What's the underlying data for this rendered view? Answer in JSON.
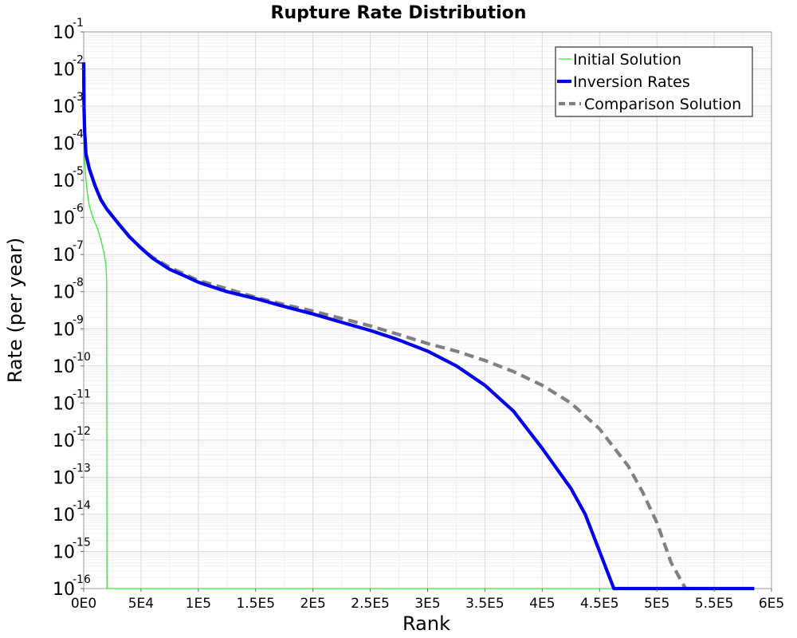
{
  "chart_data": {
    "type": "line",
    "title": "Rupture Rate Distribution",
    "xlabel": "Rank",
    "ylabel": "Rate (per year)",
    "x_scale": "linear",
    "y_scale": "log",
    "xlim": [
      0,
      600000
    ],
    "ylim": [
      1e-16,
      0.1
    ],
    "grid": true,
    "legend_position": "top-right",
    "x_ticks": [
      {
        "value": 0,
        "label": "0E0"
      },
      {
        "value": 50000,
        "label": "5E4"
      },
      {
        "value": 100000,
        "label": "1E5"
      },
      {
        "value": 150000,
        "label": "1.5E5"
      },
      {
        "value": 200000,
        "label": "2E5"
      },
      {
        "value": 250000,
        "label": "2.5E5"
      },
      {
        "value": 300000,
        "label": "3E5"
      },
      {
        "value": 350000,
        "label": "3.5E5"
      },
      {
        "value": 400000,
        "label": "4E5"
      },
      {
        "value": 450000,
        "label": "4.5E5"
      },
      {
        "value": 500000,
        "label": "5E5"
      },
      {
        "value": 550000,
        "label": "5.5E5"
      },
      {
        "value": 600000,
        "label": "6E5"
      }
    ],
    "y_ticks": [
      {
        "value": 0.1,
        "base": "10",
        "exp": "-1"
      },
      {
        "value": 0.01,
        "base": "10",
        "exp": "-2"
      },
      {
        "value": 0.001,
        "base": "10",
        "exp": "-3"
      },
      {
        "value": 0.0001,
        "base": "10",
        "exp": "-4"
      },
      {
        "value": 1e-05,
        "base": "10",
        "exp": "-5"
      },
      {
        "value": 1e-06,
        "base": "10",
        "exp": "-6"
      },
      {
        "value": 1e-07,
        "base": "10",
        "exp": "-7"
      },
      {
        "value": 1e-08,
        "base": "10",
        "exp": "-8"
      },
      {
        "value": 1e-09,
        "base": "10",
        "exp": "-9"
      },
      {
        "value": 1e-10,
        "base": "10",
        "exp": "-10"
      },
      {
        "value": 1e-11,
        "base": "10",
        "exp": "-11"
      },
      {
        "value": 1e-12,
        "base": "10",
        "exp": "-12"
      },
      {
        "value": 1e-13,
        "base": "10",
        "exp": "-13"
      },
      {
        "value": 1e-14,
        "base": "10",
        "exp": "-14"
      },
      {
        "value": 1e-15,
        "base": "10",
        "exp": "-15"
      },
      {
        "value": 1e-16,
        "base": "10",
        "exp": "-16"
      }
    ],
    "series": [
      {
        "name": "Initial Solution",
        "color": "#33ee33",
        "style": "solid-thin",
        "points": [
          [
            0,
            0.01
          ],
          [
            300,
            0.0001
          ],
          [
            1000,
            3e-05
          ],
          [
            2000,
            1e-05
          ],
          [
            3000,
            5e-06
          ],
          [
            5000,
            2e-06
          ],
          [
            8000,
            1e-06
          ],
          [
            12000,
            5e-07
          ],
          [
            15000,
            2.5e-07
          ],
          [
            18000,
            1e-07
          ],
          [
            19500,
            5e-08
          ],
          [
            20000,
            2e-08
          ],
          [
            20300,
            1e-16
          ],
          [
            40000,
            1e-16
          ],
          [
            100000,
            1e-16
          ],
          [
            200000,
            1e-16
          ],
          [
            300000,
            1e-16
          ],
          [
            400000,
            1e-16
          ],
          [
            500000,
            1e-16
          ],
          [
            585000,
            1e-16
          ]
        ]
      },
      {
        "name": "Inversion Rates",
        "color": "#0000ee",
        "style": "solid-thick",
        "points": [
          [
            0,
            0.015
          ],
          [
            300,
            0.001
          ],
          [
            800,
            0.0002
          ],
          [
            2000,
            5e-05
          ],
          [
            5000,
            2e-05
          ],
          [
            10000,
            7e-06
          ],
          [
            15000,
            3e-06
          ],
          [
            20000,
            1.7e-06
          ],
          [
            30000,
            7e-07
          ],
          [
            40000,
            3e-07
          ],
          [
            50000,
            1.5e-07
          ],
          [
            60000,
            8e-08
          ],
          [
            75000,
            4e-08
          ],
          [
            90000,
            2.5e-08
          ],
          [
            100000,
            1.8e-08
          ],
          [
            125000,
            1e-08
          ],
          [
            150000,
            6.5e-09
          ],
          [
            175000,
            4e-09
          ],
          [
            200000,
            2.5e-09
          ],
          [
            225000,
            1.5e-09
          ],
          [
            250000,
            9e-10
          ],
          [
            275000,
            5e-10
          ],
          [
            300000,
            2.5e-10
          ],
          [
            325000,
            1e-10
          ],
          [
            350000,
            3e-11
          ],
          [
            375000,
            6e-12
          ],
          [
            400000,
            6e-13
          ],
          [
            425000,
            5e-14
          ],
          [
            437500,
            1e-14
          ],
          [
            450000,
            1e-15
          ],
          [
            462500,
            5e-17
          ],
          [
            475000,
            1e-16
          ],
          [
            585000,
            1e-16
          ]
        ]
      },
      {
        "name": "Comparison Solution",
        "color": "#808080",
        "style": "dashed-thick",
        "points": [
          [
            0,
            0.015
          ],
          [
            300,
            0.001
          ],
          [
            800,
            0.0002
          ],
          [
            2000,
            5e-05
          ],
          [
            5000,
            2e-05
          ],
          [
            10000,
            7e-06
          ],
          [
            15000,
            3e-06
          ],
          [
            20000,
            1.7e-06
          ],
          [
            30000,
            7e-07
          ],
          [
            40000,
            3e-07
          ],
          [
            50000,
            1.5e-07
          ],
          [
            60000,
            8.5e-08
          ],
          [
            75000,
            4.5e-08
          ],
          [
            100000,
            2e-08
          ],
          [
            125000,
            1.2e-08
          ],
          [
            150000,
            7e-09
          ],
          [
            175000,
            4.5e-09
          ],
          [
            200000,
            3e-09
          ],
          [
            225000,
            1.9e-09
          ],
          [
            250000,
            1.2e-09
          ],
          [
            275000,
            7e-10
          ],
          [
            300000,
            4e-10
          ],
          [
            325000,
            2.5e-10
          ],
          [
            350000,
            1.4e-10
          ],
          [
            375000,
            7e-11
          ],
          [
            400000,
            3e-11
          ],
          [
            425000,
            1e-11
          ],
          [
            450000,
            2e-12
          ],
          [
            475000,
            2e-13
          ],
          [
            487500,
            4e-14
          ],
          [
            500000,
            6e-15
          ],
          [
            512500,
            5e-16
          ],
          [
            525000,
            5e-17
          ],
          [
            530000,
            1e-16
          ]
        ]
      }
    ]
  }
}
